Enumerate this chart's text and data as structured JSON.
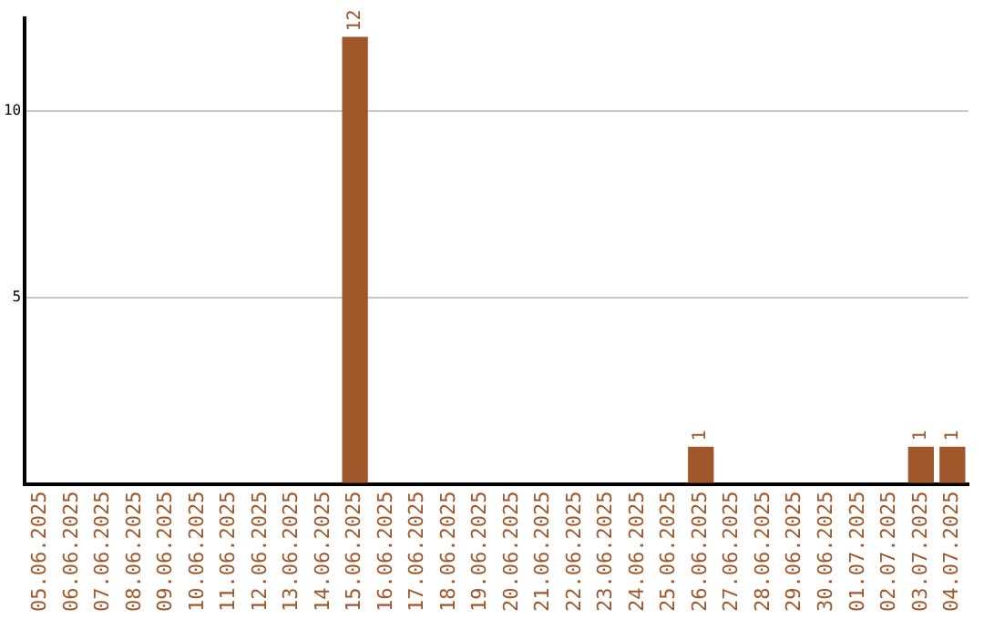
{
  "chart_data": {
    "type": "bar",
    "categories": [
      "05.06.2025",
      "06.06.2025",
      "07.06.2025",
      "08.06.2025",
      "09.06.2025",
      "10.06.2025",
      "11.06.2025",
      "12.06.2025",
      "13.06.2025",
      "14.06.2025",
      "15.06.2025",
      "16.06.2025",
      "17.06.2025",
      "18.06.2025",
      "19.06.2025",
      "20.06.2025",
      "21.06.2025",
      "22.06.2025",
      "23.06.2025",
      "24.06.2025",
      "25.06.2025",
      "26.06.2025",
      "27.06.2025",
      "28.06.2025",
      "29.06.2025",
      "30.06.2025",
      "01.07.2025",
      "02.07.2025",
      "03.07.2025",
      "04.07.2025"
    ],
    "values": [
      0,
      0,
      0,
      0,
      0,
      0,
      0,
      0,
      0,
      0,
      12,
      0,
      0,
      0,
      0,
      0,
      0,
      0,
      0,
      0,
      0,
      1,
      0,
      0,
      0,
      0,
      0,
      0,
      1,
      1
    ],
    "value_labels": [
      null,
      null,
      null,
      null,
      null,
      null,
      null,
      null,
      null,
      null,
      "12",
      null,
      null,
      null,
      null,
      null,
      null,
      null,
      null,
      null,
      null,
      "1",
      null,
      null,
      null,
      null,
      null,
      null,
      "1",
      "1"
    ],
    "color": "#a0582a",
    "ylim": [
      0,
      12.5
    ],
    "yticks": [
      {
        "value": 0,
        "label": null
      },
      5,
      10
    ],
    "grid": "y",
    "legend": false
  }
}
